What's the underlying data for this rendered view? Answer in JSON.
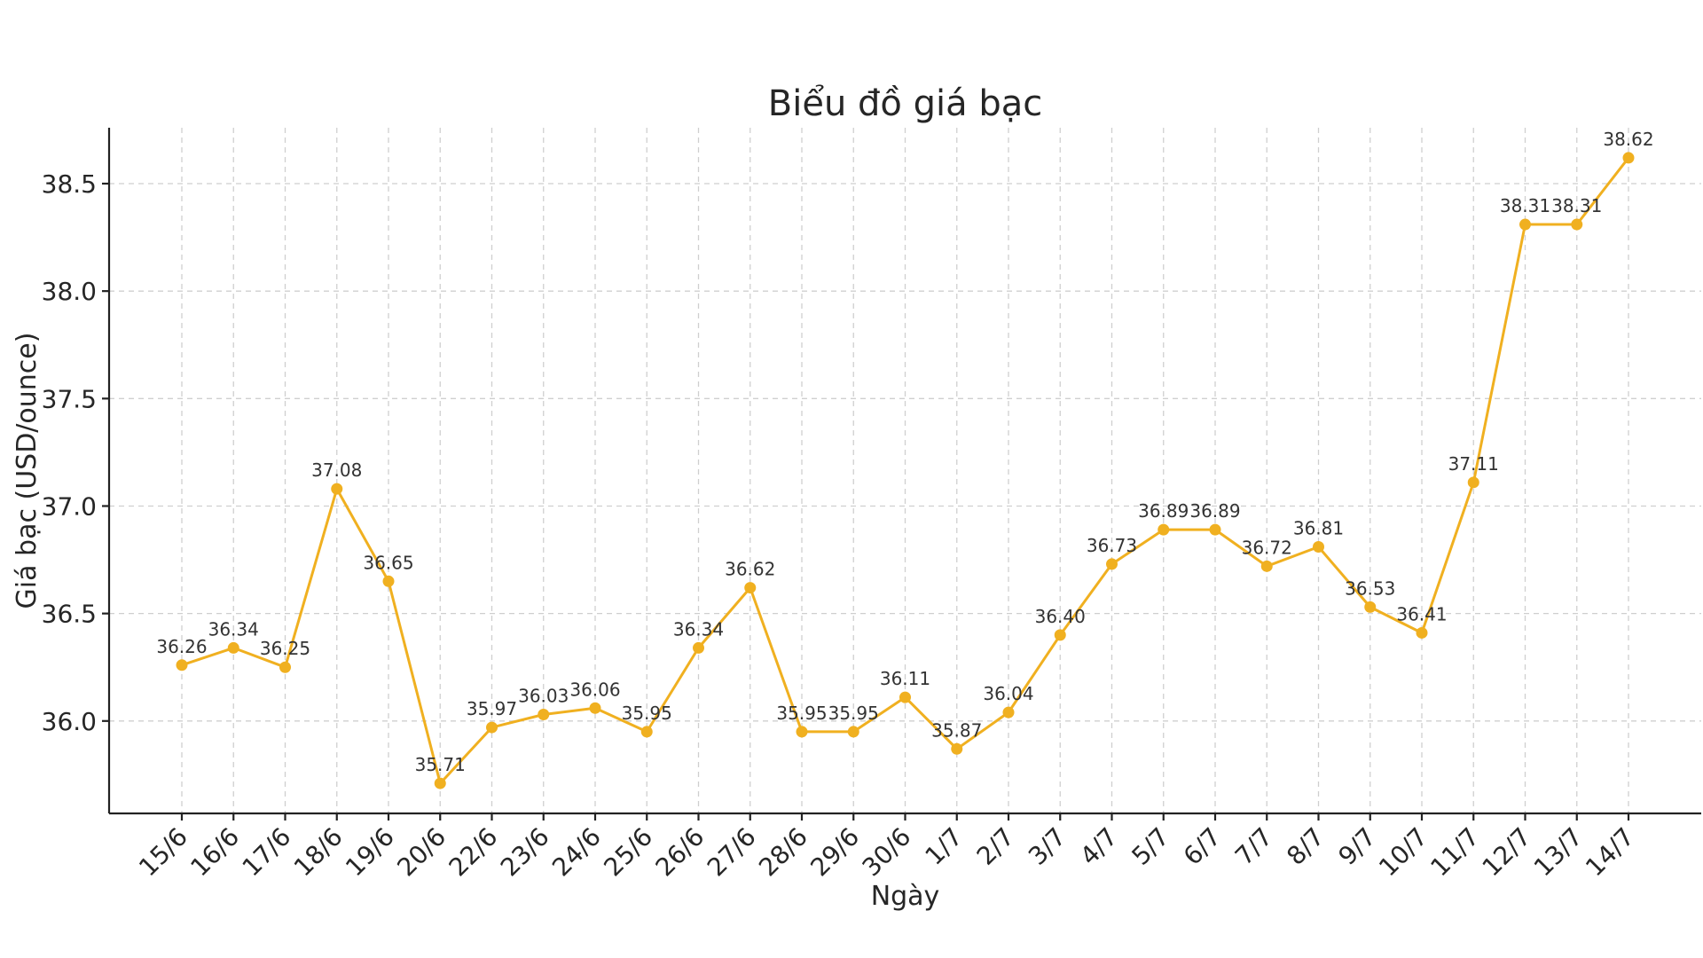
{
  "chart_data": {
    "type": "line",
    "title": "Biểu đồ giá bạc",
    "xlabel": "Ngày",
    "ylabel": "Giá bạc (USD/ounce)",
    "categories": [
      "15/6",
      "16/6",
      "17/6",
      "18/6",
      "19/6",
      "20/6",
      "22/6",
      "23/6",
      "24/6",
      "25/6",
      "26/6",
      "27/6",
      "28/6",
      "29/6",
      "30/6",
      "1/7",
      "2/7",
      "3/7",
      "4/7",
      "5/7",
      "6/7",
      "7/7",
      "8/7",
      "9/7",
      "10/7",
      "11/7",
      "12/7",
      "13/7",
      "14/7"
    ],
    "values": [
      36.26,
      36.34,
      36.25,
      37.08,
      36.65,
      35.71,
      35.97,
      36.03,
      36.06,
      35.95,
      36.34,
      36.62,
      35.95,
      35.95,
      36.11,
      35.87,
      36.04,
      36.4,
      36.73,
      36.89,
      36.89,
      36.72,
      36.81,
      36.53,
      36.41,
      37.11,
      38.31,
      38.31,
      38.62
    ],
    "data_labels": [
      "36.26",
      "36.34",
      "36.25",
      "37.08",
      "36.65",
      "35.71",
      "35.97",
      "36.03",
      "36.06",
      "35.95",
      "36.34",
      "36.62",
      "35.95",
      "35.95",
      "36.11",
      "35.87",
      "36.04",
      "36.40",
      "36.73",
      "36.89",
      "36.89",
      "36.72",
      "36.81",
      "36.53",
      "36.41",
      "37.11",
      "38.31",
      "38.31",
      "38.62"
    ],
    "yticks": [
      "36.0",
      "36.5",
      "37.0",
      "37.5",
      "38.0",
      "38.5"
    ],
    "ytick_values": [
      36.0,
      36.5,
      37.0,
      37.5,
      38.0,
      38.5
    ],
    "ylim": [
      35.57,
      38.76
    ],
    "grid": true,
    "line_color": "#F0B020",
    "marker_color": "#F0B020"
  }
}
